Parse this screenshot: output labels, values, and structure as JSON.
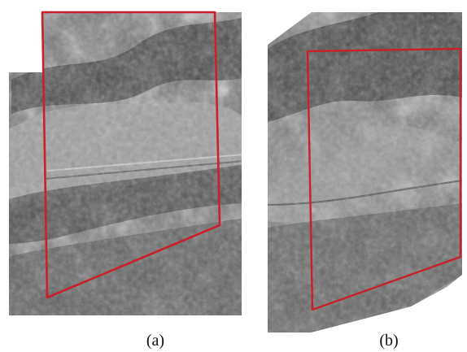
{
  "figure": {
    "captions": {
      "a": "(a)",
      "b": "(b)"
    }
  },
  "colors": {
    "outline": "#cc1f2a",
    "background": "#ffffff"
  }
}
